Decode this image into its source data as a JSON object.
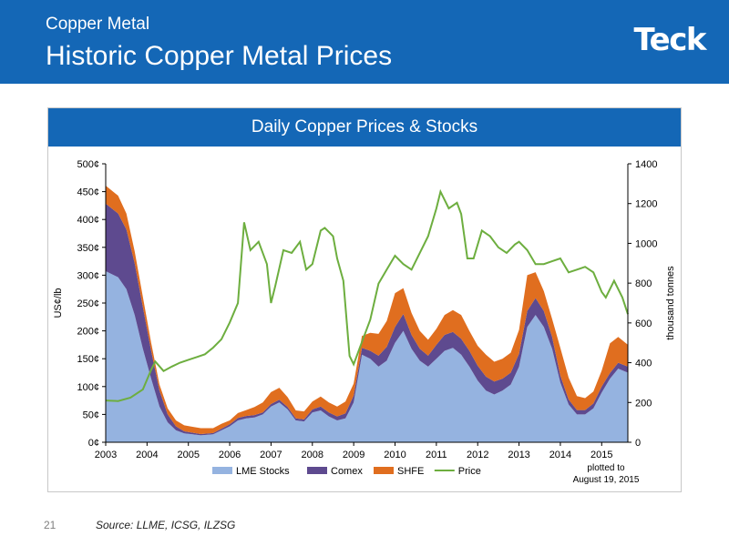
{
  "header": {
    "kicker": "Copper Metal",
    "title": "Historic Copper Metal Prices",
    "logo": "Teck"
  },
  "footer": {
    "slide_number": "21",
    "source": "Source:  LLME, ICSG, ILZSG"
  },
  "colors": {
    "header_blue": "#1467b6",
    "lme": "#95b3e0",
    "comex": "#5e4a8f",
    "shfe": "#e06e1f",
    "price": "#6dae3f"
  },
  "chart_data": {
    "type": "area",
    "title": "Daily Copper Prices & Stocks",
    "ylabel": "US¢/lb",
    "y2label": "thousand tonnes",
    "ylim": [
      0,
      500
    ],
    "y2lim": [
      0,
      1400
    ],
    "xlim": [
      2003,
      2015.633
    ],
    "y_ticks": [
      "0¢",
      "50¢",
      "100¢",
      "150¢",
      "200¢",
      "250¢",
      "300¢",
      "350¢",
      "400¢",
      "450¢",
      "500¢"
    ],
    "y2_ticks": [
      "0",
      "200",
      "400",
      "600",
      "800",
      "1000",
      "1200",
      "1400"
    ],
    "x_ticks": [
      "2003",
      "2004",
      "2005",
      "2006",
      "2007",
      "2008",
      "2009",
      "2010",
      "2011",
      "2012",
      "2013",
      "2014",
      "2015"
    ],
    "legend_position": "bottom",
    "note": [
      "plotted to",
      "August 19, 2015"
    ],
    "series": [
      {
        "name": "LME Stocks",
        "axis": "right",
        "stacked": true,
        "color": "#95b3e0",
        "x": [
          2003.0,
          2003.3,
          2003.5,
          2003.7,
          2003.9,
          2004.1,
          2004.3,
          2004.5,
          2004.7,
          2004.9,
          2005.1,
          2005.3,
          2005.6,
          2005.8,
          2006.0,
          2006.2,
          2006.4,
          2006.6,
          2006.8,
          2007.0,
          2007.2,
          2007.4,
          2007.6,
          2007.8,
          2008.0,
          2008.2,
          2008.4,
          2008.6,
          2008.8,
          2009.0,
          2009.2,
          2009.4,
          2009.6,
          2009.8,
          2010.0,
          2010.2,
          2010.4,
          2010.6,
          2010.8,
          2011.0,
          2011.2,
          2011.4,
          2011.6,
          2011.8,
          2012.0,
          2012.2,
          2012.4,
          2012.6,
          2012.8,
          2013.0,
          2013.2,
          2013.4,
          2013.6,
          2013.8,
          2014.0,
          2014.2,
          2014.4,
          2014.6,
          2014.8,
          2015.0,
          2015.2,
          2015.4,
          2015.633
        ],
        "values": [
          860,
          830,
          770,
          640,
          470,
          320,
          180,
          100,
          60,
          45,
          40,
          35,
          40,
          60,
          80,
          110,
          120,
          125,
          140,
          180,
          200,
          165,
          110,
          105,
          150,
          160,
          130,
          110,
          120,
          200,
          440,
          420,
          380,
          410,
          500,
          560,
          470,
          410,
          380,
          420,
          460,
          475,
          440,
          380,
          310,
          260,
          240,
          260,
          290,
          380,
          580,
          640,
          580,
          470,
          300,
          190,
          140,
          140,
          170,
          250,
          320,
          370,
          350
        ]
      },
      {
        "name": "Comex",
        "axis": "right",
        "stacked": true,
        "color": "#5e4a8f",
        "x": [
          2003.0,
          2003.3,
          2003.5,
          2003.7,
          2003.9,
          2004.1,
          2004.3,
          2004.5,
          2004.7,
          2004.9,
          2005.1,
          2005.3,
          2005.6,
          2005.8,
          2006.0,
          2006.2,
          2006.4,
          2006.6,
          2006.8,
          2007.0,
          2007.2,
          2007.4,
          2007.6,
          2007.8,
          2008.0,
          2008.2,
          2008.4,
          2008.6,
          2008.8,
          2009.0,
          2009.2,
          2009.4,
          2009.6,
          2009.8,
          2010.0,
          2010.2,
          2010.4,
          2010.6,
          2010.8,
          2011.0,
          2011.2,
          2011.4,
          2011.6,
          2011.8,
          2012.0,
          2012.2,
          2012.4,
          2012.6,
          2012.8,
          2013.0,
          2013.2,
          2013.4,
          2013.6,
          2013.8,
          2014.0,
          2014.2,
          2014.4,
          2014.6,
          2014.8,
          2015.0,
          2015.2,
          2015.4,
          2015.633
        ],
        "values": [
          340,
          320,
          300,
          260,
          210,
          140,
          80,
          40,
          20,
          10,
          8,
          6,
          6,
          8,
          10,
          12,
          12,
          12,
          10,
          12,
          14,
          12,
          10,
          10,
          15,
          20,
          20,
          20,
          25,
          35,
          35,
          40,
          55,
          70,
          80,
          85,
          70,
          60,
          55,
          70,
          80,
          80,
          80,
          80,
          75,
          70,
          65,
          60,
          60,
          65,
          80,
          85,
          80,
          60,
          35,
          25,
          22,
          22,
          25,
          30,
          28,
          30,
          30
        ]
      },
      {
        "name": "SHFE",
        "axis": "right",
        "stacked": true,
        "color": "#e06e1f",
        "x": [
          2003.0,
          2003.3,
          2003.5,
          2003.7,
          2003.9,
          2004.1,
          2004.3,
          2004.5,
          2004.7,
          2004.9,
          2005.1,
          2005.3,
          2005.6,
          2005.8,
          2006.0,
          2006.2,
          2006.4,
          2006.6,
          2006.8,
          2007.0,
          2007.2,
          2007.4,
          2007.6,
          2007.8,
          2008.0,
          2008.2,
          2008.4,
          2008.6,
          2008.8,
          2009.0,
          2009.2,
          2009.4,
          2009.6,
          2009.8,
          2010.0,
          2010.2,
          2010.4,
          2010.6,
          2010.8,
          2011.0,
          2011.2,
          2011.4,
          2011.6,
          2011.8,
          2012.0,
          2012.2,
          2012.4,
          2012.6,
          2012.8,
          2013.0,
          2013.2,
          2013.4,
          2013.6,
          2013.8,
          2014.0,
          2014.2,
          2014.4,
          2014.6,
          2014.8,
          2015.0,
          2015.2,
          2015.4,
          2015.633
        ],
        "values": [
          90,
          90,
          80,
          60,
          50,
          40,
          30,
          30,
          30,
          30,
          30,
          30,
          25,
          25,
          20,
          25,
          30,
          40,
          50,
          60,
          60,
          50,
          40,
          40,
          40,
          50,
          50,
          50,
          60,
          60,
          60,
          90,
          110,
          130,
          170,
          130,
          110,
          90,
          80,
          80,
          100,
          110,
          120,
          100,
          100,
          110,
          100,
          100,
          100,
          120,
          180,
          130,
          100,
          90,
          140,
          110,
          70,
          60,
          60,
          80,
          150,
          130,
          110
        ]
      },
      {
        "name": "Price",
        "axis": "left",
        "color": "#6dae3f",
        "x": [
          2003.0,
          2003.3,
          2003.6,
          2003.9,
          2004.1,
          2004.2,
          2004.4,
          2004.6,
          2004.8,
          2005.0,
          2005.2,
          2005.4,
          2005.6,
          2005.8,
          2006.0,
          2006.2,
          2006.35,
          2006.5,
          2006.7,
          2006.9,
          2007.0,
          2007.1,
          2007.3,
          2007.5,
          2007.7,
          2007.85,
          2008.0,
          2008.2,
          2008.3,
          2008.5,
          2008.6,
          2008.75,
          2008.9,
          2009.0,
          2009.2,
          2009.4,
          2009.6,
          2009.8,
          2010.0,
          2010.2,
          2010.4,
          2010.6,
          2010.8,
          2011.0,
          2011.1,
          2011.3,
          2011.5,
          2011.6,
          2011.75,
          2011.9,
          2012.1,
          2012.3,
          2012.5,
          2012.7,
          2012.9,
          2013.0,
          2013.2,
          2013.4,
          2013.6,
          2013.8,
          2014.0,
          2014.2,
          2014.4,
          2014.6,
          2014.8,
          2015.0,
          2015.1,
          2015.3,
          2015.5,
          2015.633
        ],
        "values": [
          75,
          74,
          80,
          95,
          130,
          145,
          128,
          136,
          143,
          148,
          153,
          158,
          170,
          185,
          215,
          250,
          395,
          345,
          360,
          320,
          250,
          280,
          345,
          340,
          360,
          310,
          320,
          380,
          385,
          370,
          330,
          290,
          155,
          140,
          180,
          220,
          285,
          310,
          335,
          320,
          310,
          340,
          370,
          420,
          450,
          420,
          430,
          410,
          330,
          330,
          380,
          370,
          350,
          340,
          355,
          360,
          345,
          320,
          320,
          325,
          330,
          305,
          310,
          315,
          305,
          270,
          260,
          290,
          260,
          230
        ]
      }
    ]
  }
}
